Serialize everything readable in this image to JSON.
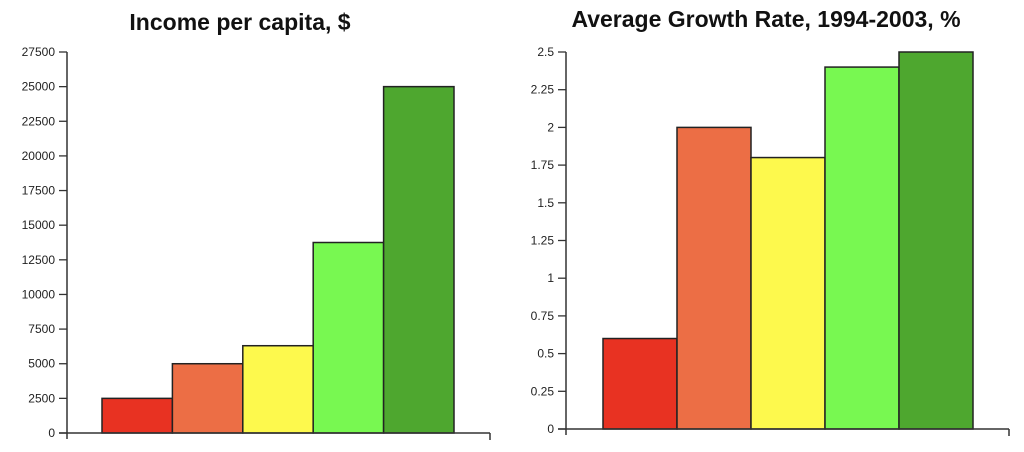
{
  "chart_data": [
    {
      "type": "bar",
      "title": "Income per capita, $",
      "xlabel": "",
      "ylabel": "",
      "ylim": [
        0,
        27500
      ],
      "yticks": [
        "0",
        "2500",
        "5000",
        "7500",
        "10000",
        "12500",
        "15000",
        "17500",
        "20000",
        "22500",
        "25000",
        "27500"
      ],
      "values": [
        2500,
        5000,
        6300,
        13750,
        25000
      ],
      "colors": [
        "#e83222",
        "#ec6e45",
        "#fdf94d",
        "#78f851",
        "#4ea72f"
      ],
      "grid": false
    },
    {
      "type": "bar",
      "title": "Average Growth Rate, 1994-2003, %",
      "xlabel": "",
      "ylabel": "",
      "ylim": [
        0,
        2.5
      ],
      "yticks": [
        "0",
        "0.25",
        "0.5",
        "0.75",
        "1",
        "1.25",
        "1.5",
        "1.75",
        "2",
        "2.25",
        "2.5"
      ],
      "values": [
        0.6,
        2.0,
        1.8,
        2.4,
        2.5
      ],
      "colors": [
        "#e83222",
        "#ec6e45",
        "#fdf94d",
        "#78f851",
        "#4ea72f"
      ],
      "grid": false
    }
  ]
}
